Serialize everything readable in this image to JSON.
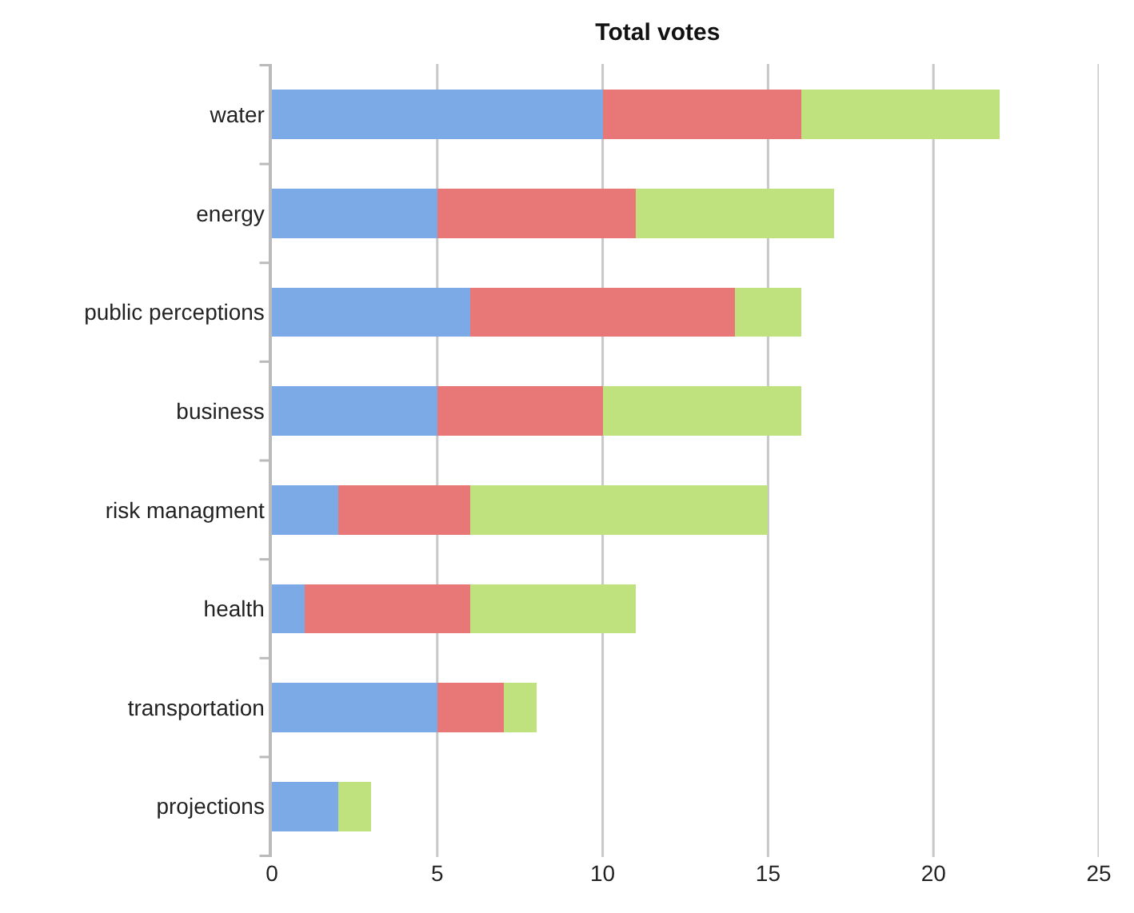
{
  "chart_data": {
    "type": "bar",
    "orientation": "horizontal",
    "stacked": true,
    "title": "Total votes",
    "categories": [
      "water",
      "energy",
      "public perceptions",
      "business",
      "risk managment",
      "health",
      "transportation",
      "projections"
    ],
    "series": [
      {
        "color": "#7caae6",
        "values": [
          10,
          5,
          6,
          5,
          2,
          1,
          5,
          2
        ]
      },
      {
        "color": "#e87878",
        "values": [
          6,
          6,
          8,
          5,
          4,
          5,
          2,
          0
        ]
      },
      {
        "color": "#bfe27f",
        "values": [
          6,
          6,
          2,
          6,
          9,
          5,
          1,
          1
        ]
      }
    ],
    "xlim": [
      0,
      25
    ],
    "xticks": [
      0,
      5,
      10,
      15,
      20,
      25
    ],
    "grid": "x"
  }
}
